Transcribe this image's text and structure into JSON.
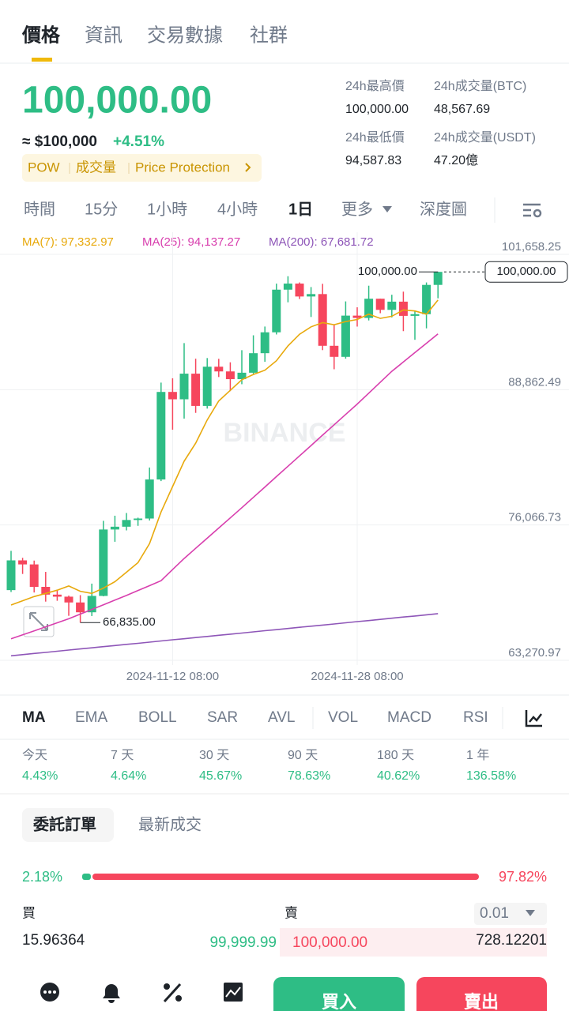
{
  "tabs": [
    "價格",
    "資訊",
    "交易數據",
    "社群"
  ],
  "price": {
    "last": "100,000.00",
    "usd": "≈ $100,000",
    "change": "+4.51%",
    "tags": [
      "POW",
      "成交量",
      "Price Protection"
    ]
  },
  "stats": [
    {
      "label": "24h最高價",
      "value": "100,000.00"
    },
    {
      "label": "24h成交量(BTC)",
      "value": "48,567.69"
    },
    {
      "label": "24h最低價",
      "value": "94,587.83"
    },
    {
      "label": "24h成交量(USDT)",
      "value": "47.20億"
    }
  ],
  "intervals": [
    "時間",
    "15分",
    "1小時",
    "4小時",
    "1日",
    "更多",
    "深度圖"
  ],
  "chart_data": {
    "type": "candlestick",
    "watermark": "BINANCE",
    "categories": [
      null,
      null,
      null,
      null,
      null,
      null,
      null,
      null,
      null,
      null,
      null,
      null,
      null,
      null,
      "2024-11-12 08:00",
      null,
      null,
      null,
      null,
      null,
      null,
      null,
      null,
      null,
      null,
      null,
      null,
      null,
      null,
      null,
      "2024-11-28 08:00",
      null,
      null,
      null,
      null,
      null,
      null,
      null
    ],
    "open": [
      69907,
      72720,
      72339,
      70216,
      69482,
      69289,
      68741,
      67811,
      69359,
      75640,
      75904,
      76538,
      76677,
      80370,
      88648,
      87952,
      90375,
      87325,
      91032,
      90587,
      89855,
      90464,
      92310,
      94286,
      98317,
      98892,
      97672,
      97900,
      93010,
      91965,
      95863,
      95643,
      97460,
      96407,
      97185,
      95840,
      96002,
      98768
    ],
    "high": [
      73620,
      72961,
      72700,
      71632,
      69914,
      69390,
      69433,
      70522,
      76460,
      76943,
      77199,
      76761,
      81500,
      89530,
      89940,
      93265,
      91790,
      91850,
      91779,
      91449,
      92594,
      94002,
      94831,
      98888,
      99588,
      99000,
      98564,
      98871,
      94973,
      97208,
      96650,
      98693,
      97463,
      97836,
      98130,
      96305,
      99000,
      100000
    ],
    "low": [
      69730,
      71436,
      69685,
      68820,
      68900,
      67478,
      66835,
      67458,
      69322,
      74480,
      75556,
      75986,
      76492,
      80216,
      85072,
      86127,
      86668,
      87073,
      90057,
      88723,
      89376,
      90357,
      91500,
      94080,
      97122,
      97432,
      95734,
      92600,
      90791,
      91792,
      94827,
      95407,
      96092,
      95693,
      94395,
      93578,
      94660,
      97500
    ],
    "close": [
      72720,
      72339,
      70215,
      69482,
      69289,
      68741,
      67811,
      69359,
      75640,
      75904,
      76538,
      76677,
      80370,
      88647,
      87952,
      90375,
      87325,
      91032,
      90586,
      89855,
      90464,
      92310,
      94286,
      98317,
      98892,
      97672,
      97900,
      93010,
      91965,
      95863,
      95643,
      97460,
      96407,
      97185,
      95840,
      96002,
      98768,
      100000
    ],
    "up_color": "#2ebd85",
    "down_color": "#f6465d",
    "series": [
      {
        "name": "MA(7)",
        "legend": "MA(7): 97,332.97",
        "color": "#e8a90c",
        "values": [
          68500,
          68900,
          69300,
          69600,
          69900,
          70300,
          69800,
          69600,
          70100,
          70700,
          71600,
          72500,
          74300,
          77300,
          79700,
          82100,
          83800,
          86000,
          87800,
          88800,
          89800,
          90300,
          90700,
          91600,
          93000,
          94100,
          94800,
          95200,
          95000,
          95300,
          95500,
          96000,
          95600,
          95800,
          96400,
          96300,
          96000,
          97332.97
        ]
      },
      {
        "name": "MA(25)",
        "legend": "MA(25): 94,137.27",
        "color": "#d83fae",
        "values": [
          65300,
          65680,
          66060,
          66440,
          66820,
          67200,
          67640,
          68080,
          68520,
          68960,
          69400,
          69870,
          70330,
          70800,
          71850,
          72900,
          73860,
          74820,
          75780,
          76740,
          77700,
          78680,
          79660,
          80640,
          81620,
          82600,
          83580,
          84560,
          85540,
          86520,
          87500,
          88530,
          89570,
          90600,
          91480,
          92370,
          93250,
          94137.27
        ]
      },
      {
        "name": "MA(200)",
        "legend": "MA(200): 67,681.72",
        "color": "#8e56b8",
        "values": [
          63700,
          63810,
          63920,
          64020,
          64130,
          64240,
          64350,
          64450,
          64560,
          64670,
          64780,
          64880,
          64990,
          65100,
          65210,
          65310,
          65420,
          65530,
          65640,
          65740,
          65850,
          65960,
          66070,
          66170,
          66280,
          66390,
          66500,
          66600,
          66710,
          66820,
          66930,
          67030,
          67140,
          67250,
          67360,
          67460,
          67570,
          67681.72
        ]
      }
    ],
    "ylim": [
      63270.97,
      101658.25
    ],
    "yticks": [
      {
        "value": 63270.97,
        "label": "63,270.97"
      },
      {
        "value": 76066.73,
        "label": "76,066.73"
      },
      {
        "value": 88862.49,
        "label": "88,862.49"
      },
      {
        "value": 101658.25,
        "label": "101,658.25"
      }
    ],
    "grid": true,
    "low_label": {
      "value": 66835,
      "label": "66,835.00"
    },
    "high_label": {
      "value": 100000,
      "label": "100,000.00"
    },
    "last_price": {
      "value": 100000,
      "label": "100,000.00"
    }
  },
  "indicators": [
    "MA",
    "EMA",
    "BOLL",
    "SAR",
    "AVL",
    "VOL",
    "MACD",
    "RSI"
  ],
  "performance": [
    {
      "period": "今天",
      "value": "4.43%"
    },
    {
      "period": "7 天",
      "value": "4.64%"
    },
    {
      "period": "30 天",
      "value": "45.67%"
    },
    {
      "period": "90 天",
      "value": "78.63%"
    },
    {
      "period": "180 天",
      "value": "40.62%"
    },
    {
      "period": "1 年",
      "value": "136.58%"
    }
  ],
  "orderbook": {
    "tabs": [
      "委託訂單",
      "最新成交"
    ],
    "ratio": {
      "values": [
        2.18,
        97.82
      ],
      "value_labels": [
        "2.18%",
        "97.82%"
      ]
    },
    "buy_label": "買",
    "sell_label": "賣",
    "precision": "0.01",
    "rows": [
      {
        "bid_qty": "15.96364",
        "bid": "99,999.99",
        "ask": "100,000.00",
        "ask_qty": "728.12201"
      }
    ]
  },
  "actions": {
    "buy": "買入",
    "sell": "賣出"
  }
}
